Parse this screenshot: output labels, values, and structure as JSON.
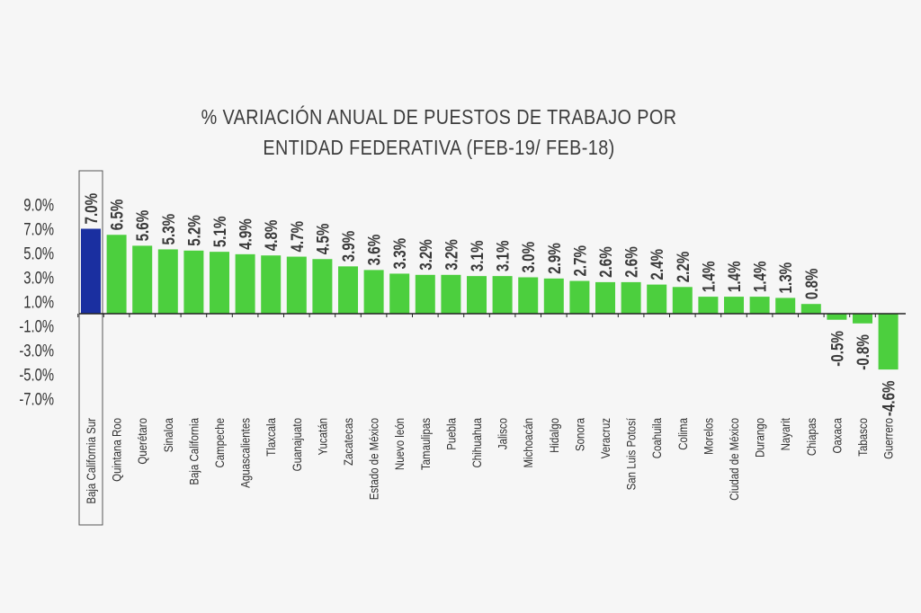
{
  "chart_data": {
    "type": "bar",
    "title": [
      "% VARIACIÓN ANUAL DE PUESTOS DE TRABAJO POR",
      "ENTIDAD FEDERATIVA (FEB-19/ FEB-18)"
    ],
    "xlabel": "",
    "ylabel": "",
    "categories": [
      "Baja California Sur",
      "Quintana Roo",
      "Querétaro",
      "Sinaloa",
      "Baja California",
      "Campeche",
      "Aguascalientes",
      "Tlaxcala",
      "Guanajuato",
      "Yucatán",
      "Zacatecas",
      "Estado de México",
      "Nuevo león",
      "Tamaulipas",
      "Puebla",
      "Chihuahua",
      "Jalisco",
      "Michoacán",
      "Hidalgo",
      "Sonora",
      "Veracruz",
      "San Luis Potosí",
      "Coahuila",
      "Colima",
      "Morelos",
      "Ciudad de México",
      "Durango",
      "Nayarit",
      "Chiapas",
      "Oaxaca",
      "Tabasco",
      "Guerrero"
    ],
    "values": [
      7.0,
      6.5,
      5.6,
      5.3,
      5.2,
      5.1,
      4.9,
      4.8,
      4.7,
      4.5,
      3.9,
      3.6,
      3.3,
      3.2,
      3.2,
      3.1,
      3.1,
      3.0,
      2.9,
      2.7,
      2.6,
      2.6,
      2.4,
      2.2,
      1.4,
      1.4,
      1.4,
      1.3,
      0.8,
      -0.5,
      -0.8,
      -4.6
    ],
    "value_labels": [
      "7.0%",
      "6.5%",
      "5.6%",
      "5.3%",
      "5.2%",
      "5.1%",
      "4.9%",
      "4.8%",
      "4.7%",
      "4.5%",
      "3.9%",
      "3.6%",
      "3.3%",
      "3.2%",
      "3.2%",
      "3.1%",
      "3.1%",
      "3.0%",
      "2.9%",
      "2.7%",
      "2.6%",
      "2.6%",
      "2.4%",
      "2.2%",
      "1.4%",
      "1.4%",
      "1.4%",
      "1.3%",
      "0.8%",
      "-0.5%",
      "-0.8%",
      "-4.6%"
    ],
    "yticks": [
      9.0,
      7.0,
      5.0,
      3.0,
      1.0,
      -1.0,
      -3.0,
      -5.0,
      -7.0
    ],
    "ytick_labels": [
      "9.0%",
      "7.0%",
      "5.0%",
      "3.0%",
      "1.0%",
      "-1.0%",
      "-3.0%",
      "-5.0%",
      "-7.0%"
    ],
    "ylim": [
      -7.0,
      9.0
    ],
    "grid": false,
    "legend": "none",
    "highlight_category": "Baja California Sur",
    "colors": {
      "bar": "#4ccf3e",
      "highlight": "#1a2fa0",
      "axis": "#222222",
      "text": "#333333",
      "background": "#f6f6f6"
    }
  }
}
